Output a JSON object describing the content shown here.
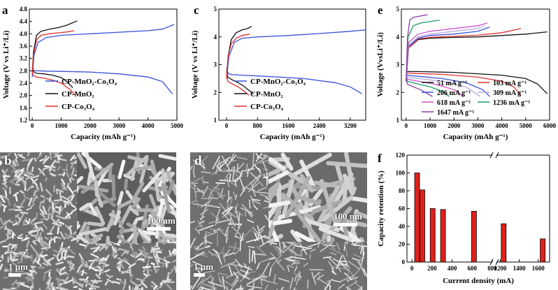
{
  "panels": [
    {
      "id": "a",
      "chart_data": {
        "type": "line",
        "xlabel": "Capacity (mAh g⁻¹)",
        "ylabel": "Voltage (V vs Li⁺/Li)",
        "xlim": [
          -100,
          5000
        ],
        "ylim": [
          1.2,
          4.8
        ],
        "xticks": [
          0,
          1000,
          2000,
          3000,
          4000,
          5000
        ],
        "yticks": [
          1.2,
          1.6,
          2.0,
          2.4,
          2.8,
          3.2,
          3.6,
          4.0,
          4.4,
          4.8
        ],
        "grid": false,
        "legend_position": "bottom-left",
        "series": [
          {
            "name": "CP-MnO₂-Co₃O₄",
            "color": "#3a50d8",
            "segments": [
              {
                "x": [
                  0,
                  40,
                  150,
                  500,
                  1000,
                  2000,
                  3000,
                  4000,
                  4500,
                  4850
                ],
                "y": [
                  2.95,
                  2.82,
                  2.8,
                  2.79,
                  2.78,
                  2.76,
                  2.7,
                  2.6,
                  2.45,
                  2.05
                ]
              },
              {
                "x": [
                  0,
                  60,
                  200,
                  500,
                  1000,
                  2000,
                  3000,
                  4000,
                  4500,
                  4900
                ],
                "y": [
                  2.6,
                  3.3,
                  3.72,
                  3.88,
                  3.95,
                  4.0,
                  4.05,
                  4.1,
                  4.15,
                  4.3
                ]
              }
            ]
          },
          {
            "name": "CP-MnO₂",
            "color": "#111111",
            "segments": [
              {
                "x": [
                  0,
                  30,
                  150,
                  400,
                  700,
                  1000,
                  1200,
                  1400
                ],
                "y": [
                  2.9,
                  2.78,
                  2.72,
                  2.7,
                  2.66,
                  2.58,
                  2.45,
                  2.25
                ]
              },
              {
                "x": [
                  0,
                  40,
                  150,
                  300,
                  600,
                  900,
                  1200,
                  1550
                ],
                "y": [
                  2.7,
                  3.4,
                  3.95,
                  4.08,
                  4.15,
                  4.2,
                  4.28,
                  4.42
                ]
              }
            ]
          },
          {
            "name": "CP-Co₃O₄",
            "color": "#e03030",
            "segments": [
              {
                "x": [
                  0,
                  30,
                  150,
                  400,
                  700,
                  1000,
                  1300,
                  1500
                ],
                "y": [
                  2.85,
                  2.65,
                  2.6,
                  2.56,
                  2.5,
                  2.4,
                  2.2,
                  2.0
                ]
              },
              {
                "x": [
                  0,
                  40,
                  150,
                  300,
                  600,
                  900,
                  1200,
                  1450
                ],
                "y": [
                  2.7,
                  3.3,
                  3.8,
                  3.95,
                  4.0,
                  4.03,
                  4.06,
                  4.1
                ]
              }
            ]
          }
        ]
      }
    },
    {
      "id": "c",
      "chart_data": {
        "type": "line",
        "xlabel": "Capacity (mAh g⁻¹)",
        "ylabel": "Voltage (V vs Li⁺/Li)",
        "xlim": [
          -200,
          3600
        ],
        "ylim": [
          1,
          5
        ],
        "xticks": [
          0,
          800,
          1600,
          2400,
          3200
        ],
        "yticks": [
          1,
          2,
          3,
          4,
          5
        ],
        "grid": false,
        "legend_position": "bottom-left",
        "series": [
          {
            "name": "CP-MnO₂-Co₃O₄",
            "color": "#3a50d8",
            "segments": [
              {
                "x": [
                  0,
                  40,
                  150,
                  400,
                  1000,
                  2000,
                  2800,
                  3200,
                  3500
                ],
                "y": [
                  2.9,
                  2.68,
                  2.64,
                  2.62,
                  2.58,
                  2.5,
                  2.35,
                  2.2,
                  1.95
                ]
              },
              {
                "x": [
                  0,
                  60,
                  200,
                  400,
                  800,
                  1600,
                  2400,
                  3200,
                  3600
                ],
                "y": [
                  2.5,
                  3.3,
                  3.8,
                  3.95,
                  4.0,
                  4.05,
                  4.12,
                  4.2,
                  4.25
                ]
              }
            ]
          },
          {
            "name": "CP-MnO₂",
            "color": "#111111",
            "segments": [
              {
                "x": [
                  0,
                  30,
                  150,
                  300,
                  450,
                  600,
                  700
                ],
                "y": [
                  2.8,
                  2.55,
                  2.45,
                  2.35,
                  2.22,
                  2.05,
                  1.95
                ]
              },
              {
                "x": [
                  0,
                  40,
                  120,
                  250,
                  400,
                  550,
                  650
                ],
                "y": [
                  2.6,
                  3.3,
                  3.9,
                  4.15,
                  4.25,
                  4.3,
                  4.38
                ]
              }
            ]
          },
          {
            "name": "CP-Co₃O₄",
            "color": "#e03030",
            "segments": [
              {
                "x": [
                  0,
                  30,
                  150,
                  300,
                  450,
                  580
                ],
                "y": [
                  2.7,
                  2.4,
                  2.3,
                  2.2,
                  2.05,
                  1.9
                ]
              },
              {
                "x": [
                  0,
                  40,
                  120,
                  250,
                  400,
                  600
                ],
                "y": [
                  2.5,
                  3.3,
                  3.75,
                  3.95,
                  4.05,
                  4.1
                ]
              }
            ]
          }
        ]
      }
    },
    {
      "id": "e",
      "chart_data": {
        "type": "line",
        "xlabel": "Capacity (mAh g⁻¹)",
        "ylabel": "Voltage (VvsLi⁺/Li)",
        "xlim": [
          -200,
          6000
        ],
        "ylim": [
          1,
          5
        ],
        "xticks": [
          0,
          1000,
          2000,
          3000,
          4000,
          5000,
          6000
        ],
        "yticks": [
          1,
          2,
          3,
          4,
          5
        ],
        "grid": false,
        "legend_position": "bottom",
        "series": [
          {
            "name": "51 mA g⁻¹",
            "color": "#111111",
            "segments": [
              {
                "x": [
                  0,
                  50,
                  500,
                  2000,
                  4000,
                  5000,
                  5500,
                  5900
                ],
                "y": [
                  2.8,
                  2.75,
                  2.75,
                  2.72,
                  2.62,
                  2.5,
                  2.3,
                  1.95
                ]
              },
              {
                "x": [
                  0,
                  100,
                  500,
                  1000,
                  2000,
                  3000,
                  4000,
                  5000,
                  5900
                ],
                "y": [
                  2.4,
                  3.6,
                  3.9,
                  3.95,
                  3.98,
                  4.0,
                  4.05,
                  4.1,
                  4.18
                ]
              }
            ]
          },
          {
            "name": "103 mA g⁻¹",
            "color": "#e03030",
            "segments": [
              {
                "x": [
                  0,
                  50,
                  500,
                  1500,
                  3000,
                  4000,
                  4500,
                  4800
                ],
                "y": [
                  2.75,
                  2.7,
                  2.68,
                  2.65,
                  2.55,
                  2.4,
                  2.2,
                  1.9
                ]
              },
              {
                "x": [
                  0,
                  100,
                  500,
                  1000,
                  2000,
                  3000,
                  4000,
                  4800
                ],
                "y": [
                  2.4,
                  3.6,
                  3.92,
                  3.98,
                  4.02,
                  4.06,
                  4.15,
                  4.3
                ]
              }
            ]
          },
          {
            "name": "206 mA g⁻¹",
            "color": "#3a50d8",
            "segments": [
              {
                "x": [
                  0,
                  50,
                  500,
                  1500,
                  2500,
                  3200,
                  3500
                ],
                "y": [
                  2.7,
                  2.62,
                  2.58,
                  2.5,
                  2.35,
                  2.1,
                  1.85
                ]
              },
              {
                "x": [
                  0,
                  100,
                  500,
                  1000,
                  2000,
                  3000,
                  3500
                ],
                "y": [
                  2.4,
                  3.65,
                  3.95,
                  4.05,
                  4.1,
                  4.2,
                  4.35
                ]
              }
            ]
          },
          {
            "name": "309 mA g⁻¹",
            "color": "#b9a8e0",
            "segments": [
              {
                "x": [
                  0,
                  50,
                  500,
                  1500,
                  2500,
                  3100
                ],
                "y": [
                  2.65,
                  2.55,
                  2.5,
                  2.4,
                  2.2,
                  1.85
                ]
              },
              {
                "x": [
                  0,
                  100,
                  500,
                  1000,
                  2000,
                  3000,
                  3300
                ],
                "y": [
                  2.4,
                  3.7,
                  4.0,
                  4.1,
                  4.2,
                  4.3,
                  4.4
                ]
              }
            ]
          },
          {
            "name": "618 mA g⁻¹",
            "color": "#cc55cc",
            "segments": [
              {
                "x": [
                  0,
                  50,
                  500,
                  1200,
                  2000,
                  2400
                ],
                "y": [
                  2.6,
                  2.48,
                  2.4,
                  2.3,
                  2.1,
                  1.85
                ]
              },
              {
                "x": [
                  0,
                  100,
                  500,
                  1000,
                  2000,
                  3000,
                  3400
                ],
                "y": [
                  2.4,
                  3.8,
                  4.1,
                  4.2,
                  4.3,
                  4.4,
                  4.5
                ]
              }
            ]
          },
          {
            "name": "1236 mA g⁻¹",
            "color": "#1f9a6a",
            "segments": [
              {
                "x": [
                  0,
                  50,
                  500,
                  1000,
                  1500,
                  1800
                ],
                "y": [
                  2.55,
                  2.4,
                  2.3,
                  2.2,
                  2.05,
                  1.85
                ]
              },
              {
                "x": [
                  0,
                  80,
                  300,
                  600,
                  1000,
                  1400
                ],
                "y": [
                  2.4,
                  4.0,
                  4.4,
                  4.5,
                  4.55,
                  4.6
                ]
              }
            ]
          },
          {
            "name": "1647 mA g⁻¹",
            "color": "#8a3aa8",
            "segments": [
              {
                "x": [
                  0,
                  50,
                  300,
                  600,
                  900,
                  1100
                ],
                "y": [
                  2.5,
                  2.3,
                  2.2,
                  2.1,
                  1.95,
                  1.85
                ]
              },
              {
                "x": [
                  0,
                  60,
                  150,
                  300,
                  600,
                  900
                ],
                "y": [
                  2.4,
                  4.0,
                  4.6,
                  4.7,
                  4.75,
                  4.8
                ]
              }
            ]
          }
        ]
      }
    },
    {
      "id": "f",
      "chart_data": {
        "type": "bar",
        "xlabel": "Current density (mA)",
        "ylabel": "Capacity retention (%)",
        "ylim": [
          0,
          120
        ],
        "yticks": [
          0,
          20,
          40,
          60,
          80,
          100,
          120
        ],
        "x_tick_labels": [
          "0",
          "200",
          "400",
          "600",
          "800",
          "1200",
          "1400",
          "1600"
        ],
        "axis_break": "x between 800 and 1200",
        "bar_color": "#e0201a",
        "x": [
          51,
          103,
          206,
          309,
          618,
          1236,
          1647
        ],
        "values": [
          100,
          81,
          60,
          59,
          57,
          43,
          26
        ]
      }
    }
  ],
  "images": [
    {
      "id": "b",
      "scalebars": [
        "100 nm",
        "1 μm"
      ]
    },
    {
      "id": "d",
      "scalebars": [
        "100 nm",
        "1 μm"
      ]
    }
  ],
  "colors": {
    "axis": "#000000",
    "bar_fill": "#e0201a",
    "sem_base": "#6f6f6f",
    "sem_light": "#d9d9d9"
  }
}
